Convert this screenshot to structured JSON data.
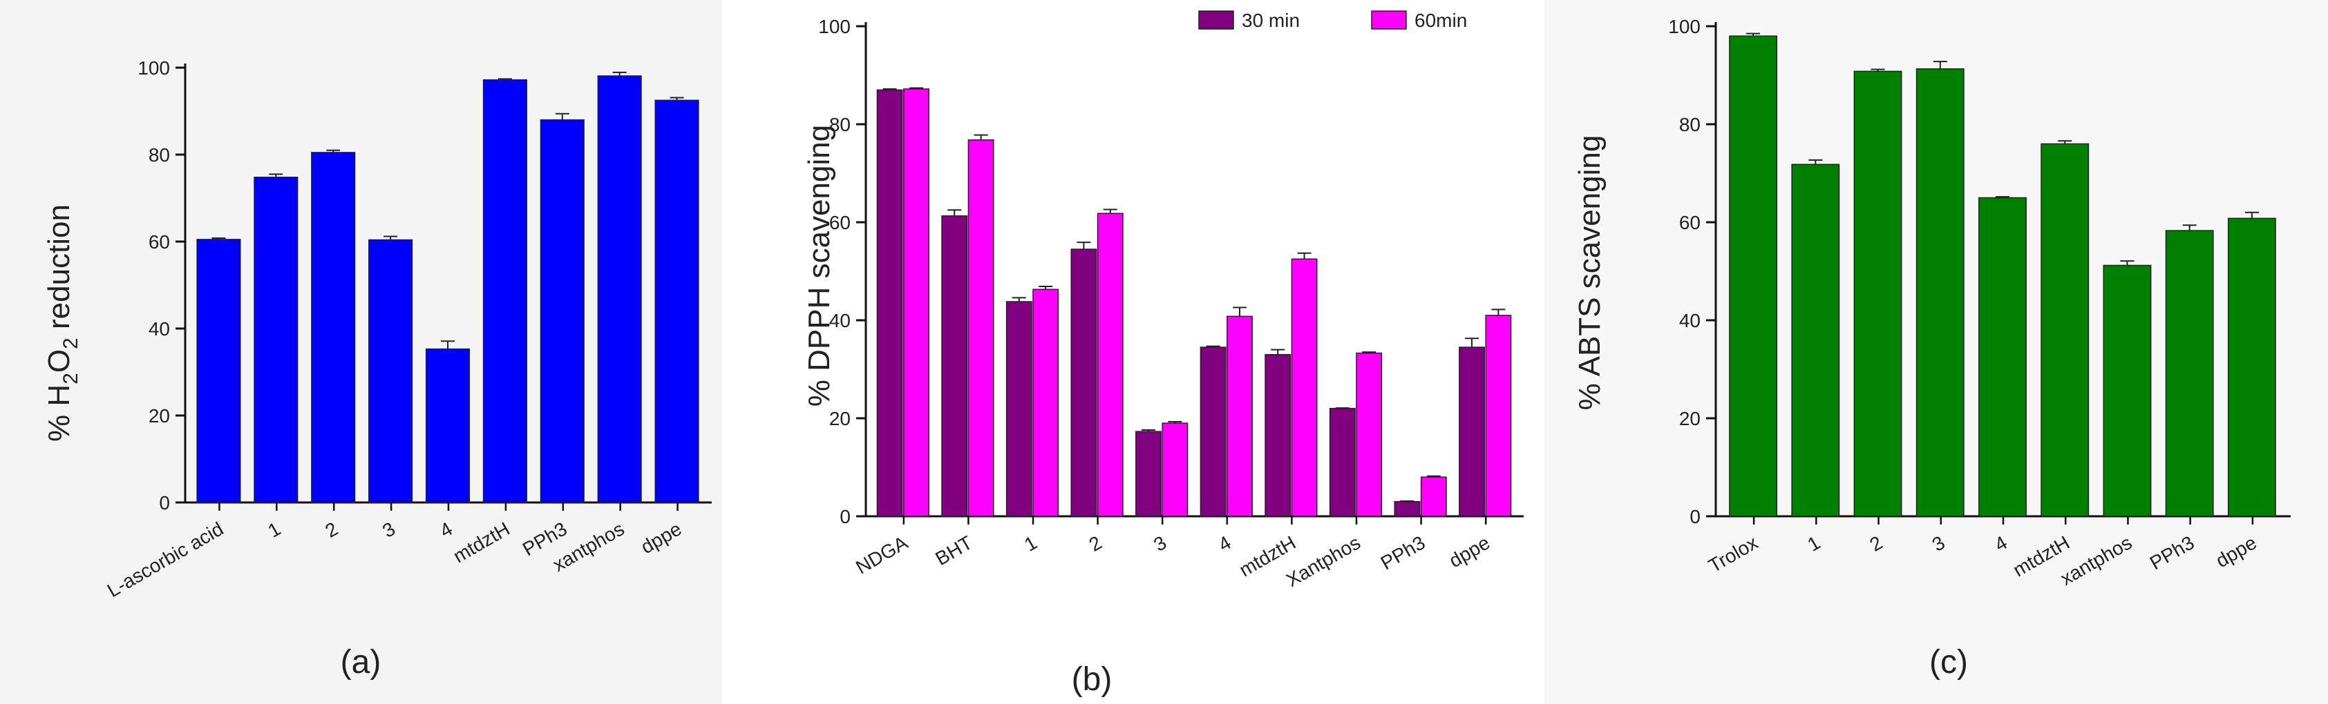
{
  "panels": [
    {
      "id": "a",
      "caption": "(a)",
      "ylabel": "% H2O2 reduction",
      "ylabel_parts": [
        "% H",
        "2",
        "O",
        "2",
        " reduction"
      ],
      "colors": [
        "#0000ff"
      ]
    },
    {
      "id": "b",
      "caption": "(b)",
      "ylabel": "% DPPH scavenging",
      "colors": [
        "#800080",
        "#ff00ff"
      ]
    },
    {
      "id": "c",
      "caption": "(c)",
      "ylabel": "% ABTS scavenging",
      "colors": [
        "#008000"
      ]
    }
  ],
  "chart_data": [
    {
      "type": "bar",
      "panel": "a",
      "title": "",
      "xlabel": "",
      "ylabel": "% H2O2 reduction",
      "ylim": [
        0,
        100
      ],
      "yticks": [
        0,
        20,
        40,
        60,
        80,
        100
      ],
      "categories": [
        "L-ascorbic acid",
        "1",
        "2",
        "3",
        "4",
        "mtdztH",
        "PPh3",
        "xantphos",
        "dppe"
      ],
      "series": [
        {
          "name": "H2O2 reduction",
          "color": "#0000ff",
          "values": [
            60.5,
            74.8,
            80.5,
            60.4,
            35.3,
            97.2,
            88.0,
            98.1,
            92.5
          ],
          "errors": [
            0.3,
            0.7,
            0.5,
            0.8,
            1.8,
            0.2,
            1.4,
            0.8,
            0.6
          ]
        }
      ],
      "legend": null
    },
    {
      "type": "bar",
      "panel": "b",
      "title": "",
      "xlabel": "",
      "ylabel": "% DPPH scavenging",
      "ylim": [
        0,
        100
      ],
      "yticks": [
        0,
        20,
        40,
        60,
        80,
        100
      ],
      "categories": [
        "NDGA",
        "BHT",
        "1",
        "2",
        "3",
        "4",
        "mtdztH",
        "Xantphos",
        "PPh3",
        "dppe"
      ],
      "series": [
        {
          "name": "30 min",
          "color": "#800080",
          "values": [
            87.0,
            61.3,
            43.8,
            54.5,
            17.3,
            34.5,
            33.0,
            22.0,
            3.0,
            34.5
          ],
          "errors": [
            0.2,
            1.2,
            0.8,
            1.4,
            0.3,
            0.2,
            1.0,
            0.1,
            0.1,
            1.8
          ]
        },
        {
          "name": "60min",
          "color": "#ff00ff",
          "values": [
            87.2,
            76.8,
            46.3,
            61.8,
            19.0,
            40.8,
            52.5,
            33.3,
            8.0,
            41.0
          ],
          "errors": [
            0.2,
            1.0,
            0.6,
            0.8,
            0.3,
            1.8,
            1.2,
            0.2,
            0.2,
            1.2
          ]
        }
      ],
      "legend": {
        "position": "top-right",
        "entries": [
          "30 min",
          "60min"
        ]
      }
    },
    {
      "type": "bar",
      "panel": "c",
      "title": "",
      "xlabel": "",
      "ylabel": "% ABTS scavenging",
      "ylim": [
        0,
        100
      ],
      "yticks": [
        0,
        20,
        40,
        60,
        80,
        100
      ],
      "categories": [
        "Trolox",
        "1",
        "2",
        "3",
        "4",
        "mtdztH",
        "xantphos",
        "PPh3",
        "dppe"
      ],
      "series": [
        {
          "name": "ABTS scavenging",
          "color": "#008000",
          "values": [
            98.0,
            71.8,
            90.8,
            91.3,
            65.0,
            76.0,
            51.2,
            58.3,
            60.8
          ],
          "errors": [
            0.5,
            0.9,
            0.4,
            1.5,
            0.2,
            0.6,
            0.9,
            1.1,
            1.2
          ]
        }
      ],
      "legend": null
    }
  ]
}
